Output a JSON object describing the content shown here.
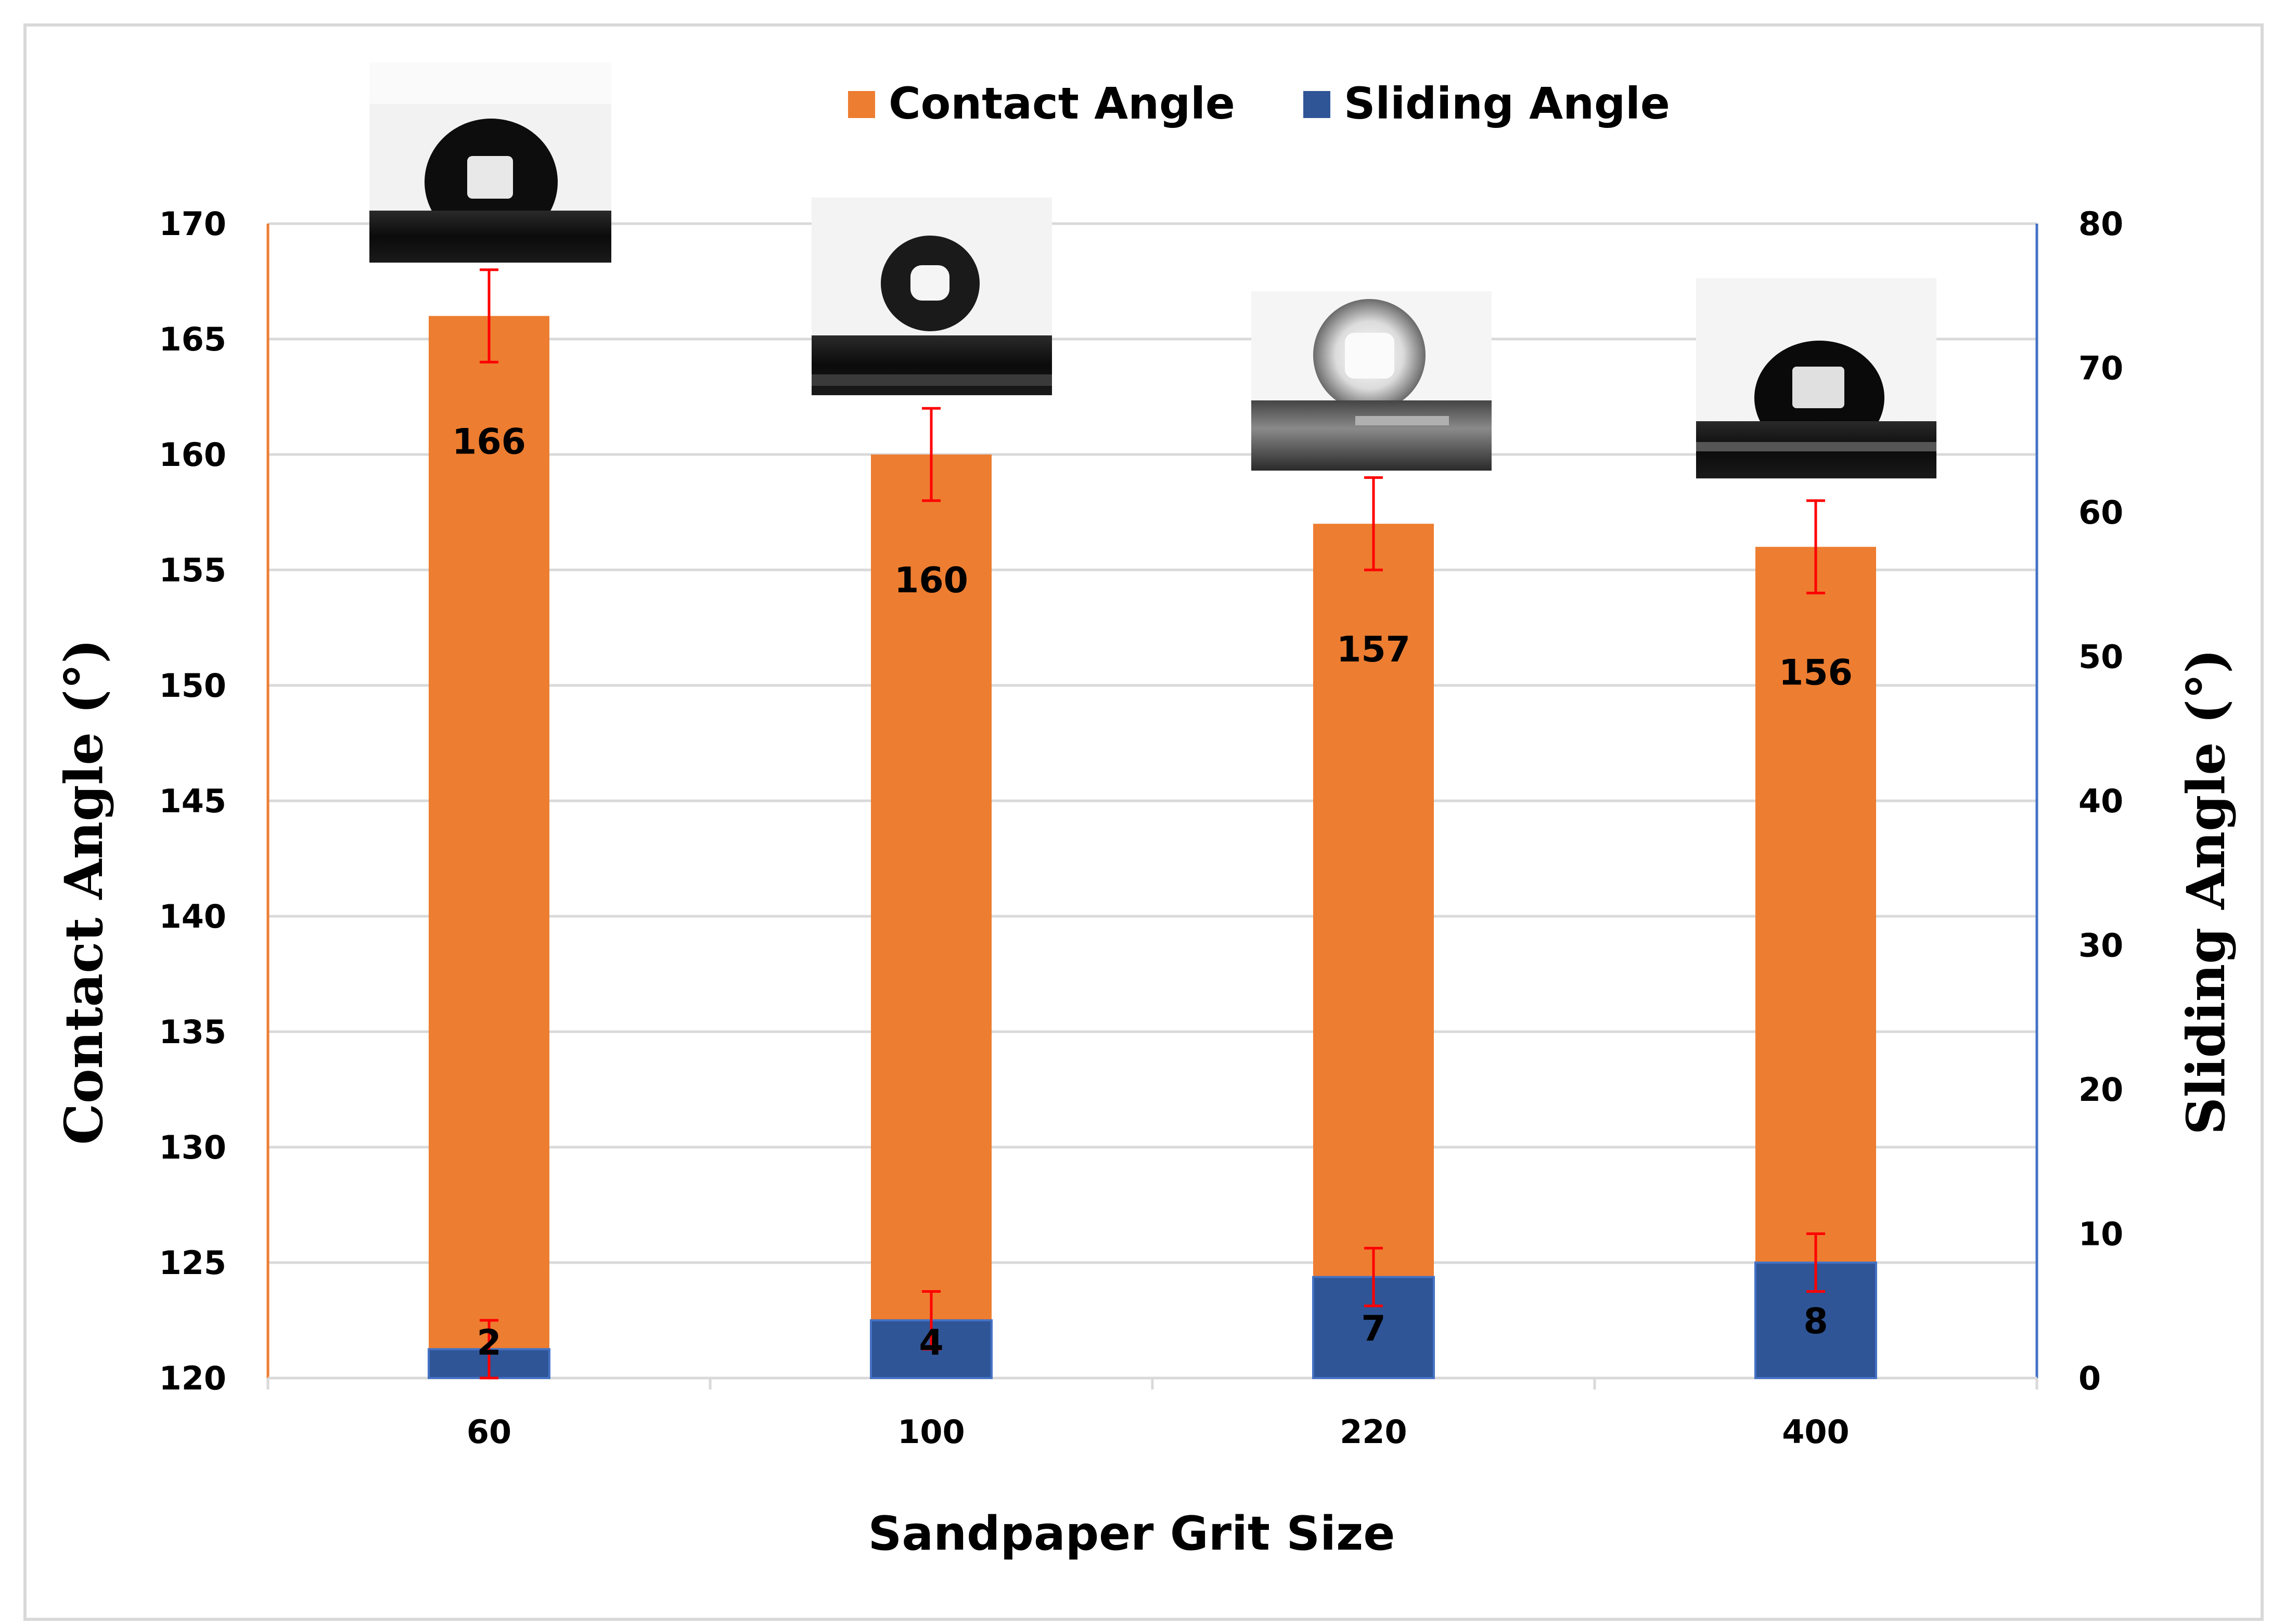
{
  "chart_data": {
    "type": "bar",
    "xlabel": "Sandpaper Grit Size",
    "ylabel": "Contact Angle (°)",
    "y2label": "Sliding Angle (°)",
    "categories": [
      "60",
      "100",
      "220",
      "400"
    ],
    "ylim": [
      120,
      170
    ],
    "yticks": [
      120,
      125,
      130,
      135,
      140,
      145,
      150,
      155,
      160,
      165,
      170
    ],
    "y2lim": [
      0,
      80
    ],
    "y2ticks": [
      0,
      10,
      20,
      30,
      40,
      50,
      60,
      70,
      80
    ],
    "grid": true,
    "legend_position": "top",
    "series": [
      {
        "name": "Contact Angle",
        "axis": "left",
        "color": "#ED7D31",
        "values": [
          166,
          160,
          157,
          156
        ],
        "labels": [
          "166",
          "160",
          "157",
          "156"
        ],
        "error": [
          2,
          2,
          2,
          2
        ]
      },
      {
        "name": "Sliding Angle",
        "axis": "right",
        "color": "#2F5597",
        "values": [
          2,
          4,
          7,
          8
        ],
        "labels": [
          "2",
          "4",
          "7",
          "8"
        ],
        "error": [
          2,
          2,
          2,
          2
        ]
      }
    ],
    "left_axis_color": "#ED7D31",
    "right_axis_color": "#4472C4",
    "error_bar_color": "#FF0000",
    "inset_images": [
      "droplet-photo",
      "droplet-photo",
      "droplet-photo",
      "droplet-photo"
    ]
  }
}
